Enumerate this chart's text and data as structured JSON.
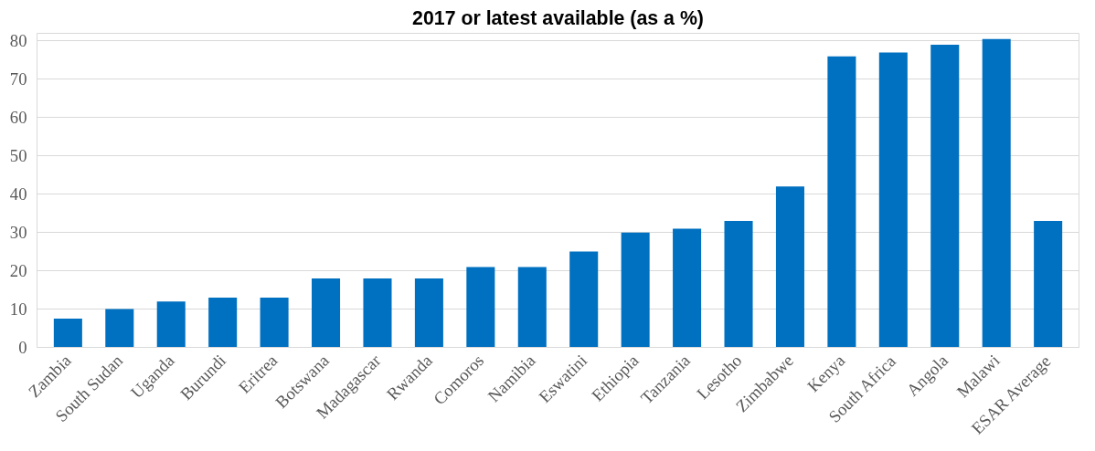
{
  "chart_data": {
    "type": "bar",
    "title": "2017 or latest available (as a %)",
    "categories": [
      "Zambia",
      "South Sudan",
      "Uganda",
      "Burundi",
      "Eritrea",
      "Botswana",
      "Madagascar",
      "Rwanda",
      "Comoros",
      "Namibia",
      "Eswatini",
      "Ethiopia",
      "Tanzania",
      "Lesotho",
      "Zimbabwe",
      "Kenya",
      "South Africa",
      "Angola",
      "Malawi",
      "ESAR Average"
    ],
    "values": [
      7.5,
      10,
      12,
      13,
      13,
      18,
      18,
      18,
      21,
      21,
      25,
      30,
      31,
      33,
      42,
      76,
      77,
      79,
      80.5,
      33
    ],
    "color": "#0070c0",
    "ylim": [
      0,
      82
    ],
    "yticks": [
      0,
      10,
      20,
      30,
      40,
      50,
      60,
      70,
      80
    ],
    "grid": "y"
  }
}
